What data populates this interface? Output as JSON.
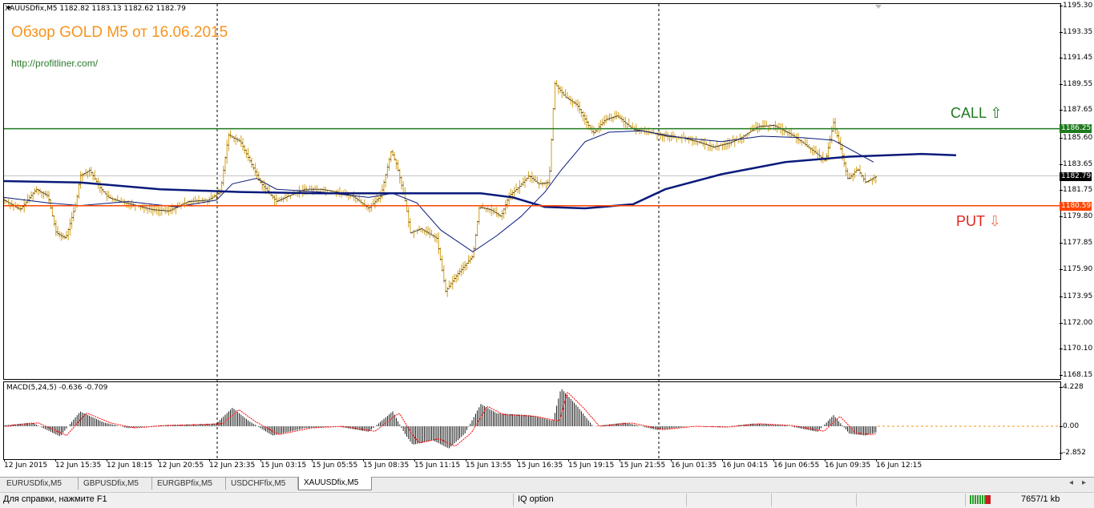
{
  "chart": {
    "symbol_header": "XAUUSDfix,M5  1182.82 1183.13 1182.62 1182.79",
    "overlay_title": "Обзор GOLD M5 от 16.06.2015",
    "overlay_url": "http://profitliner.com/",
    "call_label": "CALL",
    "put_label": "PUT",
    "y_axis": [
      "1195.30",
      "1193.35",
      "1191.45",
      "1189.55",
      "1187.65",
      "1185.60",
      "1183.65",
      "1181.75",
      "1179.80",
      "1177.85",
      "1175.90",
      "1173.95",
      "1172.00",
      "1170.10",
      "1168.15"
    ],
    "price_tags": {
      "call": "1186.25",
      "current": "1182.79",
      "put": "1180.59"
    },
    "x_axis": [
      "12 Jun 2015",
      "12 Jun 15:35",
      "12 Jun 18:15",
      "12 Jun 20:55",
      "12 Jun 23:35",
      "15 Jun 03:15",
      "15 Jun 05:55",
      "15 Jun 08:35",
      "15 Jun 11:15",
      "15 Jun 13:55",
      "15 Jun 16:35",
      "15 Jun 19:15",
      "15 Jun 21:55",
      "16 Jun 01:35",
      "16 Jun 04:15",
      "16 Jun 06:55",
      "16 Jun 09:35",
      "16 Jun 12:15"
    ],
    "macd": {
      "header": "MACD(5,24,5) -0.636 -0.709",
      "y_axis": [
        "4.228",
        "0.00",
        "-2.852"
      ]
    },
    "colors": {
      "call_line": "#1e7a1e",
      "put_line": "#ff4500",
      "candles": "#d4a017",
      "ma_slow": "#0a1a7a",
      "ma_fast": "#0a1a7a",
      "macd_hist": "#000000",
      "macd_signal": "#ff0000"
    }
  },
  "tabs": [
    "EURUSDfix,M5",
    "GBPUSDfix,M5",
    "EURGBPfix,M5",
    "USDCHFfix,M5",
    "XAUUSDfix,M5"
  ],
  "active_tab": "XAUUSDfix,M5",
  "status": {
    "help": "Для справки, нажмите F1",
    "profile": "IQ option",
    "traffic": "7657/1 kb"
  }
}
